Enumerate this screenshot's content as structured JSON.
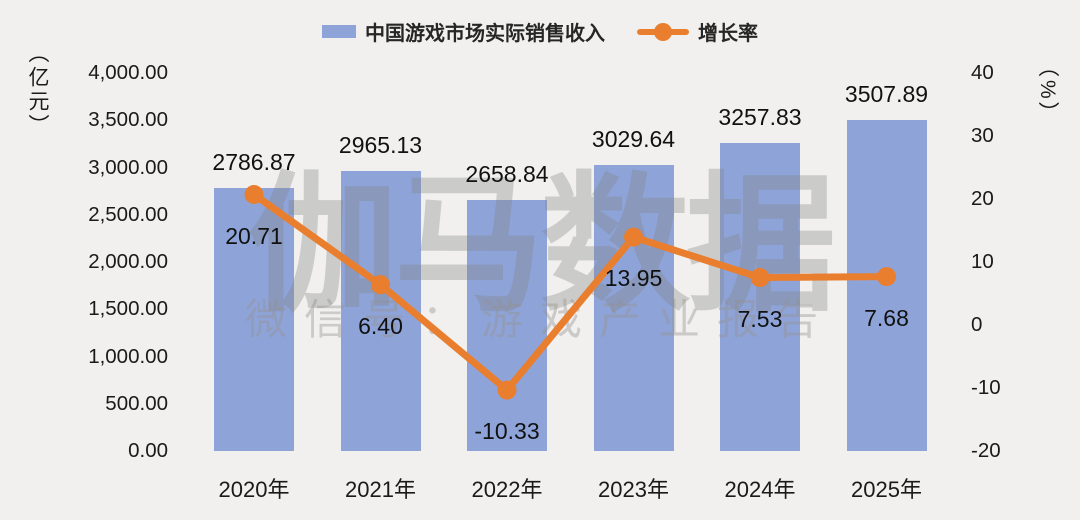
{
  "legend": {
    "revenue_label": "中国游戏市场实际销售收入",
    "growth_label": "增长率"
  },
  "watermark": {
    "title": "伽马数据",
    "subtitle": "微信号：游戏产业报告"
  },
  "colors": {
    "bar": "#8EA4D9",
    "line": "#E87E2E",
    "background": "#F1F0EE",
    "text": "#1A1A1A"
  },
  "chart_data": {
    "type": "bar",
    "subtype": "bar+line dual axis",
    "categories": [
      "2020年",
      "2021年",
      "2022年",
      "2023年",
      "2024年",
      "2025年"
    ],
    "series": [
      {
        "name": "中国游戏市场实际销售收入",
        "type": "bar",
        "axis": "left",
        "color": "#8EA4D9",
        "values": [
          2786.87,
          2965.13,
          2658.84,
          3029.64,
          3257.83,
          3507.89
        ],
        "labels": [
          "2786.87",
          "2965.13",
          "2658.84",
          "3029.64",
          "3257.83",
          "3507.89"
        ]
      },
      {
        "name": "增长率",
        "type": "line",
        "axis": "right",
        "color": "#E87E2E",
        "values": [
          20.71,
          6.4,
          -10.33,
          13.95,
          7.53,
          7.68
        ],
        "labels": [
          "20.71",
          "6.40",
          "-10.33",
          "13.95",
          "7.53",
          "7.68"
        ]
      }
    ],
    "left_axis": {
      "unit": "（亿元）",
      "min": 0,
      "max": 4000,
      "step": 500,
      "ticks": [
        "4,000.00",
        "3,500.00",
        "3,000.00",
        "2,500.00",
        "2,000.00",
        "1,500.00",
        "1,000.00",
        "500.00",
        "0.00"
      ]
    },
    "right_axis": {
      "unit": "（%）",
      "min": -20,
      "max": 40,
      "step": 10,
      "ticks": [
        "40",
        "30",
        "20",
        "10",
        "0",
        "-10",
        "-20"
      ]
    },
    "grid": false,
    "legend_position": "top"
  }
}
